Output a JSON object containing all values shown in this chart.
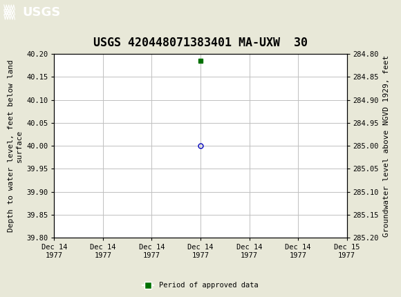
{
  "title": "USGS 420448071383401 MA-UXW  30",
  "header_color": "#1a6b3c",
  "background_color": "#e8e8d8",
  "plot_bg_color": "#ffffff",
  "grid_color": "#c0c0c0",
  "left_ylabel": "Depth to water level, feet below land\nsurface",
  "right_ylabel": "Groundwater level above NGVD 1929, feet",
  "ylim_left_top": 39.8,
  "ylim_left_bottom": 40.2,
  "ylim_right_top": 285.2,
  "ylim_right_bottom": 284.8,
  "yticks_left": [
    39.8,
    39.85,
    39.9,
    39.95,
    40.0,
    40.05,
    40.1,
    40.15,
    40.2
  ],
  "yticks_right": [
    285.2,
    285.15,
    285.1,
    285.05,
    285.0,
    284.95,
    284.9,
    284.85,
    284.8
  ],
  "xlim": [
    0,
    6
  ],
  "xtick_positions": [
    0,
    1,
    2,
    3,
    4,
    5,
    6
  ],
  "xtick_labels": [
    "Dec 14\n1977",
    "Dec 14\n1977",
    "Dec 14\n1977",
    "Dec 14\n1977",
    "Dec 14\n1977",
    "Dec 14\n1977",
    "Dec 15\n1977"
  ],
  "data_point_x": 3,
  "data_point_y": 40.0,
  "data_point_color": "#0000bb",
  "data_point_markersize": 5,
  "approved_marker_x": 3,
  "approved_marker_y": 40.185,
  "approved_marker_color": "#007000",
  "approved_marker_size": 4,
  "legend_label": "Period of approved data",
  "legend_color": "#007000",
  "font_family": "monospace",
  "title_fontsize": 12,
  "label_fontsize": 8,
  "tick_fontsize": 7.5,
  "header_fontsize": 13
}
